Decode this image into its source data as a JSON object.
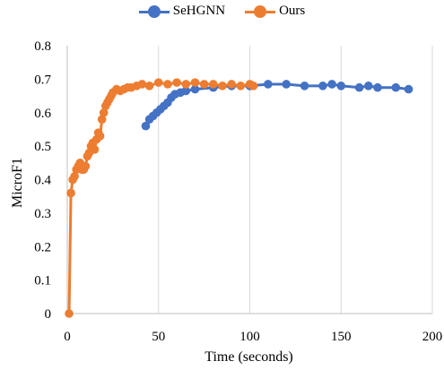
{
  "chart_data": {
    "type": "scatter",
    "title": "",
    "xlabel": "Time (seconds)",
    "ylabel": "MicroF1",
    "xlim": [
      0,
      200
    ],
    "ylim": [
      0,
      0.8
    ],
    "x_ticks": [
      "0",
      "50",
      "100",
      "150",
      "200"
    ],
    "y_ticks": [
      "0",
      "0.1",
      "0.2",
      "0.3",
      "0.4",
      "0.5",
      "0.6",
      "0.7",
      "0.8"
    ],
    "grid": "vertical",
    "legend_position": "top",
    "series": [
      {
        "name": "SeHGNN",
        "color": "#4472C4",
        "x": [
          43,
          45,
          47,
          49,
          51,
          53,
          55,
          57,
          59,
          62,
          65,
          70,
          80,
          90,
          100,
          110,
          120,
          130,
          140,
          145,
          150,
          160,
          165,
          170,
          180,
          187
        ],
        "y": [
          0.56,
          0.58,
          0.59,
          0.6,
          0.61,
          0.62,
          0.63,
          0.645,
          0.655,
          0.66,
          0.665,
          0.67,
          0.675,
          0.68,
          0.68,
          0.685,
          0.685,
          0.68,
          0.68,
          0.685,
          0.68,
          0.675,
          0.68,
          0.675,
          0.675,
          0.67
        ]
      },
      {
        "name": "Ours",
        "color": "#ED7D31",
        "x": [
          1,
          2,
          3,
          4,
          5,
          6,
          7,
          8,
          9,
          10,
          11,
          12,
          13,
          14,
          15,
          16,
          17,
          18,
          19,
          20,
          21,
          22,
          23,
          24,
          25,
          27,
          29,
          31,
          33,
          35,
          38,
          41,
          45,
          50,
          55,
          60,
          65,
          70,
          75,
          80,
          85,
          90,
          95,
          100,
          102
        ],
        "y": [
          0,
          0.36,
          0.4,
          0.41,
          0.43,
          0.44,
          0.45,
          0.43,
          0.43,
          0.44,
          0.47,
          0.48,
          0.5,
          0.51,
          0.49,
          0.52,
          0.54,
          0.53,
          0.58,
          0.6,
          0.62,
          0.63,
          0.64,
          0.65,
          0.66,
          0.67,
          0.665,
          0.67,
          0.675,
          0.675,
          0.68,
          0.685,
          0.68,
          0.69,
          0.685,
          0.69,
          0.685,
          0.69,
          0.685,
          0.685,
          0.68,
          0.685,
          0.68,
          0.685,
          0.68
        ]
      }
    ]
  }
}
